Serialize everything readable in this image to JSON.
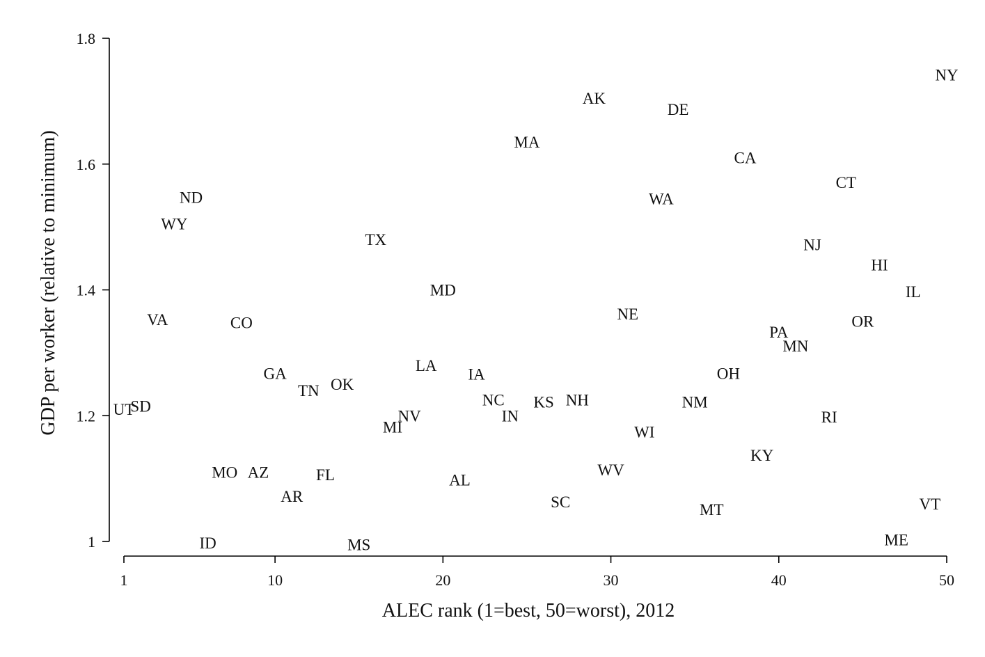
{
  "chart_data": {
    "type": "scatter",
    "title": "",
    "xlabel": "ALEC rank (1=best, 50=worst), 2012",
    "ylabel": "GDP per worker (relative to minimum)",
    "xlim": [
      1,
      50
    ],
    "ylim": [
      1,
      1.8
    ],
    "xticks": [
      1,
      10,
      20,
      30,
      40,
      50
    ],
    "yticks": [
      1,
      1.2,
      1.4,
      1.6,
      1.8
    ],
    "yticklabels": [
      "1",
      "1.2",
      "1.4",
      "1.6",
      "1.8"
    ],
    "grid": false,
    "marker": "state abbreviation text",
    "colors": {
      "text": "#111111",
      "axis": "#000000",
      "background": "#ffffff"
    },
    "points": [
      {
        "label": "UT",
        "x": 1,
        "y": 1.21
      },
      {
        "label": "SD",
        "x": 2,
        "y": 1.215
      },
      {
        "label": "VA",
        "x": 3,
        "y": 1.353
      },
      {
        "label": "WY",
        "x": 4,
        "y": 1.505
      },
      {
        "label": "ND",
        "x": 5,
        "y": 1.547
      },
      {
        "label": "ID",
        "x": 6,
        "y": 0.998
      },
      {
        "label": "MO",
        "x": 7,
        "y": 1.11
      },
      {
        "label": "CO",
        "x": 8,
        "y": 1.348
      },
      {
        "label": "AZ",
        "x": 9,
        "y": 1.11
      },
      {
        "label": "GA",
        "x": 10,
        "y": 1.267
      },
      {
        "label": "AR",
        "x": 11,
        "y": 1.072
      },
      {
        "label": "TN",
        "x": 12,
        "y": 1.24
      },
      {
        "label": "FL",
        "x": 13,
        "y": 1.106
      },
      {
        "label": "OK",
        "x": 14,
        "y": 1.25
      },
      {
        "label": "MS",
        "x": 15,
        "y": 0.995
      },
      {
        "label": "TX",
        "x": 16,
        "y": 1.48
      },
      {
        "label": "MI",
        "x": 17,
        "y": 1.182
      },
      {
        "label": "NV",
        "x": 18,
        "y": 1.2
      },
      {
        "label": "LA",
        "x": 19,
        "y": 1.28
      },
      {
        "label": "MD",
        "x": 20,
        "y": 1.4
      },
      {
        "label": "AL",
        "x": 21,
        "y": 1.098
      },
      {
        "label": "IA",
        "x": 22,
        "y": 1.266
      },
      {
        "label": "NC",
        "x": 23,
        "y": 1.225
      },
      {
        "label": "IN",
        "x": 24,
        "y": 1.2
      },
      {
        "label": "MA",
        "x": 25,
        "y": 1.635
      },
      {
        "label": "KS",
        "x": 26,
        "y": 1.222
      },
      {
        "label": "SC",
        "x": 27,
        "y": 1.063
      },
      {
        "label": "NH",
        "x": 28,
        "y": 1.225
      },
      {
        "label": "AK",
        "x": 29,
        "y": 1.705
      },
      {
        "label": "WV",
        "x": 30,
        "y": 1.114
      },
      {
        "label": "NE",
        "x": 31,
        "y": 1.362
      },
      {
        "label": "WI",
        "x": 32,
        "y": 1.174
      },
      {
        "label": "WA",
        "x": 33,
        "y": 1.545
      },
      {
        "label": "DE",
        "x": 34,
        "y": 1.687
      },
      {
        "label": "NM",
        "x": 35,
        "y": 1.222
      },
      {
        "label": "MT",
        "x": 36,
        "y": 1.051
      },
      {
        "label": "OH",
        "x": 37,
        "y": 1.267
      },
      {
        "label": "CA",
        "x": 38,
        "y": 1.61
      },
      {
        "label": "KY",
        "x": 39,
        "y": 1.137
      },
      {
        "label": "PA",
        "x": 40,
        "y": 1.333
      },
      {
        "label": "MN",
        "x": 41,
        "y": 1.311
      },
      {
        "label": "NJ",
        "x": 42,
        "y": 1.472
      },
      {
        "label": "RI",
        "x": 43,
        "y": 1.198
      },
      {
        "label": "CT",
        "x": 44,
        "y": 1.571
      },
      {
        "label": "OR",
        "x": 45,
        "y": 1.35
      },
      {
        "label": "HI",
        "x": 46,
        "y": 1.44
      },
      {
        "label": "ME",
        "x": 47,
        "y": 1.003
      },
      {
        "label": "IL",
        "x": 48,
        "y": 1.397
      },
      {
        "label": "VT",
        "x": 49,
        "y": 1.06
      },
      {
        "label": "NY",
        "x": 50,
        "y": 1.742
      }
    ]
  }
}
